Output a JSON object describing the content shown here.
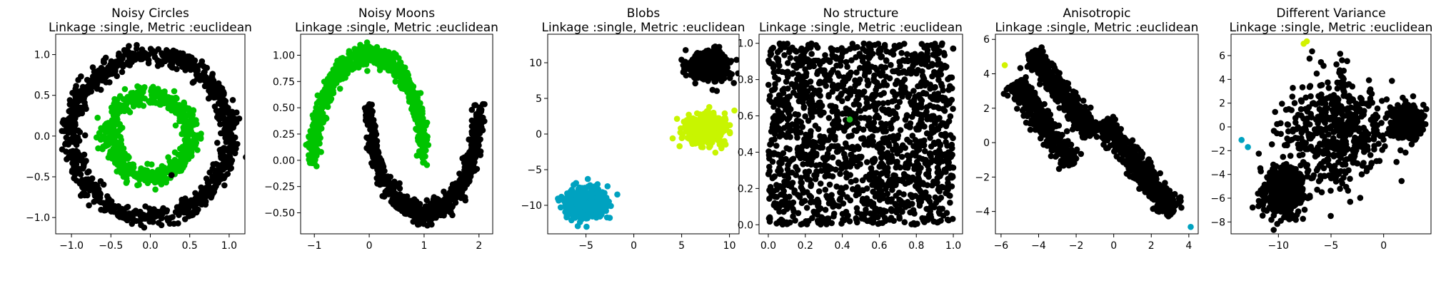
{
  "chart_data": [
    {
      "type": "scatter",
      "title": "Noisy Circles",
      "subtitle": "Linkage :single, Metric :euclidean",
      "xlim": [
        -1.2,
        1.2
      ],
      "ylim": [
        -1.2,
        1.25
      ],
      "xticks": [
        -1.0,
        -0.5,
        0.0,
        0.5,
        1.0
      ],
      "yticks": [
        -1.0,
        -0.5,
        0.0,
        0.5,
        1.0
      ],
      "xtick_labels": [
        "−1.0",
        "−0.5",
        "0.0",
        "0.5",
        "1.0"
      ],
      "ytick_labels": [
        "−1.0",
        "−0.5",
        "0.0",
        "0.5",
        "1.0"
      ],
      "series": [
        {
          "color": "#000000",
          "shape": "ring",
          "cx": 0,
          "cy": 0,
          "r": 1.0,
          "noise": 0.06,
          "n": 900
        },
        {
          "color": "#00c400",
          "shape": "ring",
          "cx": 0,
          "cy": 0,
          "r": 0.5,
          "noise": 0.06,
          "n": 600
        },
        {
          "color": "#000000",
          "points": [
            [
              0.27,
              -0.48
            ]
          ]
        }
      ]
    },
    {
      "type": "scatter",
      "title": "Noisy Moons",
      "subtitle": "Linkage :single, Metric :euclidean",
      "xlim": [
        -1.25,
        2.25
      ],
      "ylim": [
        -0.7,
        1.2
      ],
      "xticks": [
        -1,
        0,
        1,
        2
      ],
      "yticks": [
        -0.5,
        -0.25,
        0.0,
        0.25,
        0.5,
        0.75,
        1.0
      ],
      "xtick_labels": [
        "−1",
        "0",
        "1",
        "2"
      ],
      "ytick_labels": [
        "−0.50",
        "−0.25",
        "0.00",
        "0.25",
        "0.50",
        "0.75",
        "1.00"
      ],
      "series": [
        {
          "color": "#00c400",
          "shape": "moon-upper",
          "noise": 0.05,
          "n": 750
        },
        {
          "color": "#000000",
          "shape": "moon-lower",
          "noise": 0.05,
          "n": 750
        }
      ]
    },
    {
      "type": "scatter",
      "title": "Blobs",
      "subtitle": "Linkage :single, Metric :euclidean",
      "xlim": [
        -9,
        11
      ],
      "ylim": [
        -14,
        14
      ],
      "xticks": [
        -5,
        0,
        5,
        10
      ],
      "yticks": [
        -10,
        -5,
        0,
        5,
        10
      ],
      "xtick_labels": [
        "−5",
        "0",
        "5",
        "10"
      ],
      "ytick_labels": [
        "−10",
        "−5",
        "0",
        "5",
        "10"
      ],
      "series": [
        {
          "color": "#000000",
          "shape": "blob",
          "cx": 7.8,
          "cy": 9.5,
          "sx": 1.0,
          "sy": 1.0,
          "n": 500
        },
        {
          "color": "#c8f500",
          "shape": "blob",
          "cx": 7.6,
          "cy": 0.8,
          "sx": 1.0,
          "sy": 1.0,
          "n": 500
        },
        {
          "color": "#00a2c0",
          "shape": "blob",
          "cx": -5.0,
          "cy": -9.7,
          "sx": 1.0,
          "sy": 1.0,
          "n": 500
        }
      ]
    },
    {
      "type": "scatter",
      "title": "No structure",
      "subtitle": "Linkage :single, Metric :euclidean",
      "xlim": [
        -0.05,
        1.05
      ],
      "ylim": [
        -0.05,
        1.05
      ],
      "xticks": [
        0.0,
        0.2,
        0.4,
        0.6,
        0.8,
        1.0
      ],
      "yticks": [
        0.0,
        0.2,
        0.4,
        0.6,
        0.8,
        1.0
      ],
      "xtick_labels": [
        "0.0",
        "0.2",
        "0.4",
        "0.6",
        "0.8",
        "1.0"
      ],
      "ytick_labels": [
        "0.0",
        "0.2",
        "0.4",
        "0.6",
        "0.8",
        "1.0"
      ],
      "series": [
        {
          "color": "#000000",
          "shape": "uniform",
          "x0": 0,
          "x1": 1,
          "y0": 0,
          "y1": 1,
          "n": 1500
        },
        {
          "color": "#1fb81f",
          "points": [
            [
              0.44,
              0.58
            ]
          ]
        }
      ]
    },
    {
      "type": "scatter",
      "title": "Anisotropic",
      "subtitle": "Linkage :single, Metric :euclidean",
      "xlim": [
        -6.3,
        4.5
      ],
      "ylim": [
        -5.3,
        6.3
      ],
      "xticks": [
        -6,
        -4,
        -2,
        0,
        2,
        4
      ],
      "yticks": [
        -4,
        -2,
        0,
        2,
        4,
        6
      ],
      "xtick_labels": [
        "−6",
        "−4",
        "−2",
        "0",
        "2",
        "4"
      ],
      "ytick_labels": [
        "−4",
        "−2",
        "0",
        "2",
        "4",
        "6"
      ],
      "series": [
        {
          "color": "#000000",
          "shape": "streak",
          "x0": -4.4,
          "y0": 5.3,
          "x1": -1.1,
          "y1": 0.5,
          "w": 0.28,
          "n": 450
        },
        {
          "color": "#000000",
          "shape": "streak",
          "x0": -5.2,
          "y0": 3.5,
          "x1": -2.2,
          "y1": -1.3,
          "w": 0.3,
          "n": 450
        },
        {
          "color": "#000000",
          "shape": "streak",
          "x0": -0.6,
          "y0": 1.2,
          "x1": 3.2,
          "y1": -4.1,
          "w": 0.3,
          "n": 450
        },
        {
          "color": "#d2f200",
          "points": [
            [
              -5.8,
              4.5
            ]
          ]
        },
        {
          "color": "#00a2c0",
          "points": [
            [
              4.1,
              -4.9
            ]
          ]
        }
      ]
    },
    {
      "type": "scatter",
      "title": "Different Variance",
      "subtitle": "Linkage :single, Metric :euclidean",
      "xlim": [
        -14.5,
        4.5
      ],
      "ylim": [
        -9,
        7.8
      ],
      "xticks": [
        -10,
        -5,
        0
      ],
      "yticks": [
        -8,
        -6,
        -4,
        -2,
        0,
        2,
        4,
        6
      ],
      "xtick_labels": [
        "−10",
        "−5",
        "0"
      ],
      "ytick_labels": [
        "−8",
        "−6",
        "−4",
        "−2",
        "0",
        "2",
        "4",
        "6"
      ],
      "series": [
        {
          "color": "#000000",
          "shape": "blob",
          "cx": -9.5,
          "cy": -5.5,
          "sx": 1.0,
          "sy": 1.0,
          "n": 500
        },
        {
          "color": "#000000",
          "shape": "blob",
          "cx": -4.5,
          "cy": -0.2,
          "sx": 2.5,
          "sy": 2.3,
          "n": 500
        },
        {
          "color": "#000000",
          "shape": "blob",
          "cx": 2.2,
          "cy": 0.3,
          "sx": 0.7,
          "sy": 0.7,
          "n": 350
        },
        {
          "color": "#d2f200",
          "points": [
            [
              -7.6,
              7.0
            ],
            [
              -7.3,
              7.2
            ]
          ]
        },
        {
          "color": "#00a2c0",
          "points": [
            [
              -13.5,
              -1.1
            ],
            [
              -12.9,
              -1.7
            ]
          ]
        }
      ]
    }
  ]
}
